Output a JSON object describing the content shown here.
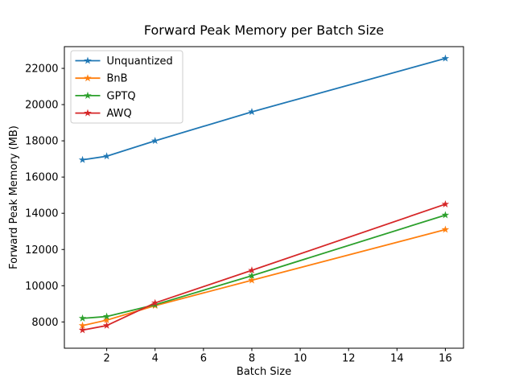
{
  "chart_data": {
    "type": "line",
    "title": "Forward Peak Memory per Batch Size",
    "xlabel": "Batch Size",
    "ylabel": "Forward Peak Memory (MB)",
    "x": [
      1,
      2,
      4,
      8,
      16
    ],
    "series": [
      {
        "name": "Unquantized",
        "color": "#1f77b4",
        "values": [
          16950,
          17150,
          18000,
          19600,
          22550
        ]
      },
      {
        "name": "BnB",
        "color": "#ff7f0e",
        "values": [
          7800,
          8100,
          8900,
          10300,
          13100
        ]
      },
      {
        "name": "GPTQ",
        "color": "#2ca02c",
        "values": [
          8200,
          8300,
          8950,
          10550,
          13900
        ]
      },
      {
        "name": "AWQ",
        "color": "#d62728",
        "values": [
          7550,
          7800,
          9050,
          10850,
          14500
        ]
      }
    ],
    "xticks": [
      2,
      4,
      6,
      8,
      10,
      12,
      14,
      16
    ],
    "yticks": [
      8000,
      10000,
      12000,
      14000,
      16000,
      18000,
      20000,
      22000
    ],
    "xlim": [
      0.25,
      16.75
    ],
    "ylim": [
      6550,
      23200
    ],
    "marker": "star",
    "grid": false,
    "legend_position": "upper-left",
    "colors": {
      "spine": "#000000",
      "background": "#ffffff",
      "legend_border": "#cccccc"
    }
  }
}
